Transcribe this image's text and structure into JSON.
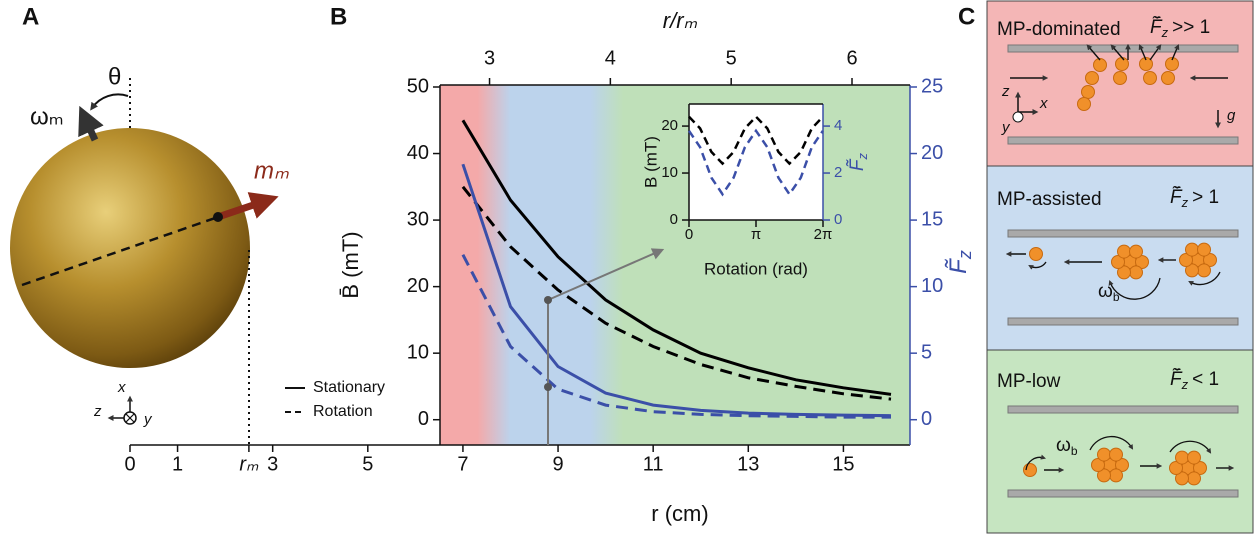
{
  "panel_labels": [
    "A",
    "B",
    "C"
  ],
  "panel_a": {
    "theta": "θ",
    "omega": "ωₘ",
    "moment": "mₘ",
    "axis_x": "x",
    "axis_z": "z",
    "axis_y": "y"
  },
  "chart_data": [
    {
      "type": "line",
      "xlabel": "r (cm)",
      "x2label": "r/rₘ",
      "ylabel": "B̄ (mT)",
      "y2label": {
        "symbol": "F̃",
        "sub": "z"
      },
      "xlim": [
        0,
        16.4
      ],
      "xticks": [
        0,
        1,
        {
          "value": 2.5,
          "label": "rₘ"
        },
        3,
        5,
        7,
        9,
        11,
        13,
        15
      ],
      "x2lim": [
        2.59,
        6.48
      ],
      "x2ticks": [
        3,
        4,
        5,
        6
      ],
      "ylim": [
        -3.8,
        50.3
      ],
      "yticks": [
        0,
        10,
        20,
        30,
        40,
        50
      ],
      "y2lim": [
        -1.9,
        25.15
      ],
      "y2ticks": [
        0,
        5,
        10,
        15,
        20,
        25
      ],
      "y2color": "#3b4fa8",
      "x": [
        7,
        8,
        9,
        10,
        11,
        12,
        13,
        14,
        15,
        16
      ],
      "legend": [
        {
          "name": "Stationary",
          "dash": false
        },
        {
          "name": "Rotation",
          "dash": true
        }
      ],
      "series": [
        {
          "color": "#000000",
          "dash": false,
          "axis": "y",
          "values": [
            45,
            33,
            24.5,
            18,
            13.5,
            10,
            7.8,
            6,
            4.8,
            3.8
          ]
        },
        {
          "color": "#000000",
          "dash": true,
          "axis": "y",
          "values": [
            35,
            26,
            19.5,
            14.5,
            11,
            8.3,
            6.3,
            5,
            3.9,
            3.1
          ]
        },
        {
          "color": "#3b4fa8",
          "dash": false,
          "axis": "y2",
          "values": [
            19.2,
            8.5,
            4,
            2,
            1.1,
            0.7,
            0.5,
            0.4,
            0.35,
            0.3
          ]
        },
        {
          "color": "#3b4fa8",
          "dash": true,
          "axis": "y2",
          "values": [
            12.4,
            5.5,
            2.3,
            1.1,
            0.6,
            0.4,
            0.3,
            0.25,
            0.2,
            0.2
          ]
        }
      ]
    },
    {
      "type": "line",
      "xlabel": "Rotation (rad)",
      "ylabel": "B (mT)",
      "y2label": {
        "symbol": "F̃",
        "sub": "z"
      },
      "xlim": [
        0,
        6.2832
      ],
      "xticks": [
        0,
        {
          "value": 3.1416,
          "label": "π"
        },
        {
          "value": 6.2832,
          "label": "2π"
        }
      ],
      "ylim": [
        0,
        24.7
      ],
      "yticks": [
        0,
        10,
        20
      ],
      "y2lim": [
        0,
        4.94
      ],
      "y2ticks": [
        0,
        2,
        4
      ],
      "y2color": "#3b4fa8",
      "x": [
        0,
        0.52,
        1.05,
        1.57,
        2.09,
        2.62,
        3.14,
        3.67,
        4.19,
        4.71,
        5.24,
        5.76,
        6.28
      ],
      "series": [
        {
          "color": "#000000",
          "dash": true,
          "axis": "y",
          "values": [
            22,
            19.5,
            14.5,
            12,
            14.5,
            19.5,
            22,
            19.5,
            14.5,
            12,
            14.5,
            19.5,
            22
          ]
        },
        {
          "color": "#3b4fa8",
          "dash": true,
          "axis": "y2",
          "values": [
            3.8,
            3.1,
            1.8,
            1.1,
            1.8,
            3.1,
            3.8,
            3.1,
            1.8,
            1.1,
            1.8,
            3.1,
            3.8
          ]
        }
      ]
    }
  ],
  "panel_c": {
    "boxes": [
      {
        "title": "MP-dominated",
        "f": {
          "symbol": "F̄̃",
          "sub": "z",
          "rest": ">> 1"
        },
        "axis_z": "z",
        "axis_x": "x",
        "axis_y": "y",
        "g": "g"
      },
      {
        "title": "MP-assisted",
        "f": {
          "symbol": "F̄̃",
          "sub": "z",
          "rest": "> 1"
        },
        "omega": {
          "symbol": "ω",
          "sub": "b"
        }
      },
      {
        "title": "MP-low",
        "f": {
          "symbol": "F̄̃",
          "sub": "z",
          "rest": "< 1"
        },
        "omega": {
          "symbol": "ω",
          "sub": "b"
        }
      }
    ]
  }
}
